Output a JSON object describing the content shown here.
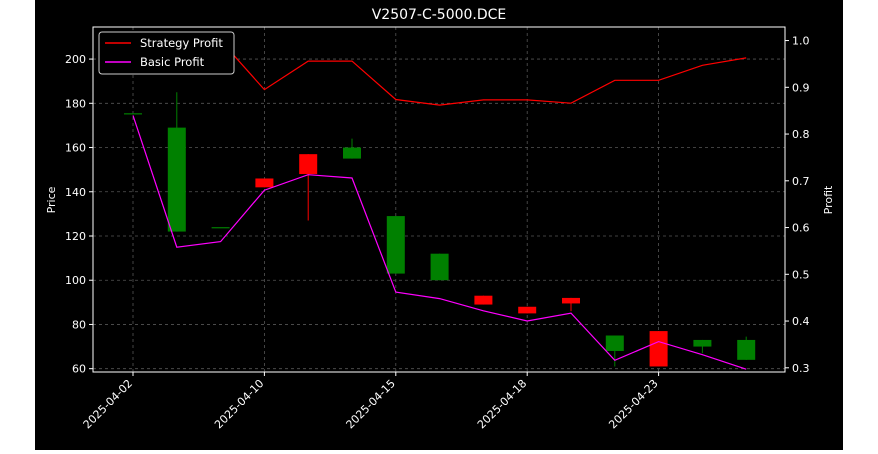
{
  "chart_data": {
    "type": "candlestick",
    "title": "V2507-C-5000.DCE",
    "ylabel_left": "Price",
    "ylabel_right": "Profit",
    "ylim_left": [
      58.5,
      214.5
    ],
    "ylim_right": [
      0.291,
      1.029
    ],
    "yticks_left": [
      60,
      80,
      100,
      120,
      140,
      160,
      180,
      200
    ],
    "yticks_right": [
      0.3,
      0.4,
      0.5,
      0.6,
      0.7,
      0.8,
      0.9,
      1.0
    ],
    "xtick_labels": [
      "2025-04-02",
      "2025-04-10",
      "2025-04-15",
      "2025-04-18",
      "2025-04-23"
    ],
    "xtick_index": [
      0,
      3,
      6,
      9,
      12
    ],
    "x_count": 15,
    "grid": true,
    "legend_position": "top-left",
    "colors": {
      "background": "#000000",
      "up": "#008000",
      "down": "#ff0000",
      "strategy": "#ff0000",
      "basic": "#ff00ff",
      "grid": "#555555",
      "axes": "#ffffff"
    },
    "candles": [
      {
        "open": 175.5,
        "close": 175.5,
        "high": 175.5,
        "low": 175.5
      },
      {
        "open": 122,
        "close": 169,
        "high": 185,
        "low": 122
      },
      {
        "open": 124,
        "close": 124,
        "high": 124,
        "low": 124
      },
      {
        "open": 146,
        "close": 142,
        "high": 146,
        "low": 142
      },
      {
        "open": 157,
        "close": 148,
        "high": 157,
        "low": 127
      },
      {
        "open": 155,
        "close": 160,
        "high": 164,
        "low": 155
      },
      {
        "open": 103,
        "close": 129,
        "high": 129,
        "low": 103
      },
      {
        "open": 100,
        "close": 112,
        "high": 112,
        "low": 100
      },
      {
        "open": 93,
        "close": 89,
        "high": 93,
        "low": 89
      },
      {
        "open": 88,
        "close": 85,
        "high": 88,
        "low": 85
      },
      {
        "open": 92,
        "close": 89.5,
        "high": 92,
        "low": 86
      },
      {
        "open": 68,
        "close": 75,
        "high": 75,
        "low": 61
      },
      {
        "open": 77,
        "close": 61,
        "high": 77,
        "low": 61
      },
      {
        "open": 70,
        "close": 73,
        "high": 73,
        "low": 67
      },
      {
        "open": 64,
        "close": 73,
        "high": 74.5,
        "low": 64
      }
    ],
    "series": [
      {
        "name": "Strategy Profit",
        "axis": "right",
        "values": [
          1.0,
          1.0,
          1.0,
          0.895,
          0.956,
          0.956,
          0.874,
          0.862,
          0.873,
          0.873,
          0.866,
          0.915,
          0.915,
          0.947,
          0.963
        ]
      },
      {
        "name": "Basic Profit",
        "axis": "right",
        "values": [
          0.84,
          0.558,
          0.57,
          0.68,
          0.713,
          0.706,
          0.462,
          0.448,
          0.422,
          0.4,
          0.417,
          0.316,
          0.356,
          0.328,
          0.297
        ]
      }
    ]
  }
}
